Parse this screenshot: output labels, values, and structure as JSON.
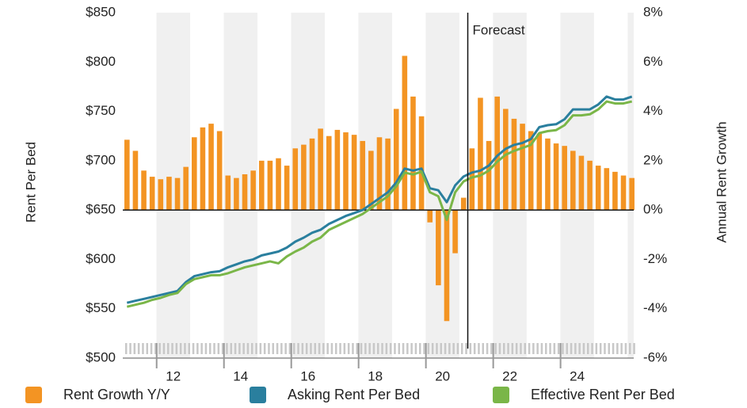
{
  "chart_data": {
    "type": "bar_line",
    "ylabel": "Rent Per Bed",
    "y2label": "Annual Rent Growth",
    "annotation": {
      "text": "Forecast",
      "x": 2021.25
    },
    "xlim": [
      2011,
      2026.18
    ],
    "xticks": [
      {
        "value": 2012.5,
        "label": "12"
      },
      {
        "value": 2014.5,
        "label": "14"
      },
      {
        "value": 2016.5,
        "label": "16"
      },
      {
        "value": 2018.5,
        "label": "18"
      },
      {
        "value": 2020.5,
        "label": "20"
      },
      {
        "value": 2022.5,
        "label": "22"
      },
      {
        "value": 2024.5,
        "label": "24"
      }
    ],
    "ylim": [
      500,
      850
    ],
    "yticks": [
      {
        "value": 500,
        "label": "$500"
      },
      {
        "value": 550,
        "label": "$550"
      },
      {
        "value": 600,
        "label": "$600"
      },
      {
        "value": 650,
        "label": "$650"
      },
      {
        "value": 700,
        "label": "$700"
      },
      {
        "value": 750,
        "label": "$750"
      },
      {
        "value": 800,
        "label": "$800"
      },
      {
        "value": 850,
        "label": "$850"
      }
    ],
    "y2lim": [
      -6,
      8
    ],
    "y2ticks": [
      {
        "value": -6,
        "label": "-6%"
      },
      {
        "value": -4,
        "label": "-4%"
      },
      {
        "value": -2,
        "label": "-2%"
      },
      {
        "value": 0,
        "label": "0%"
      },
      {
        "value": 2,
        "label": "2%"
      },
      {
        "value": 4,
        "label": "4%"
      },
      {
        "value": 6,
        "label": "6%"
      },
      {
        "value": 8,
        "label": "8%"
      }
    ],
    "x": [
      2011.125,
      2011.375,
      2011.625,
      2011.875,
      2012.125,
      2012.375,
      2012.625,
      2012.875,
      2013.125,
      2013.375,
      2013.625,
      2013.875,
      2014.125,
      2014.375,
      2014.625,
      2014.875,
      2015.125,
      2015.375,
      2015.625,
      2015.875,
      2016.125,
      2016.375,
      2016.625,
      2016.875,
      2017.125,
      2017.375,
      2017.625,
      2017.875,
      2018.125,
      2018.375,
      2018.625,
      2018.875,
      2019.125,
      2019.375,
      2019.625,
      2019.875,
      2020.125,
      2020.375,
      2020.625,
      2020.875,
      2021.125,
      2021.375,
      2021.625,
      2021.875,
      2022.125,
      2022.375,
      2022.625,
      2022.875,
      2023.125,
      2023.375,
      2023.625,
      2023.875,
      2024.125,
      2024.375,
      2024.625,
      2024.875,
      2025.125,
      2025.375,
      2025.625,
      2025.875,
      2026.125
    ],
    "series": [
      {
        "name": "Rent Growth Y/Y",
        "color": "#f39423",
        "kind": "bar",
        "axis": "y2",
        "values": [
          2.85,
          2.4,
          1.6,
          1.35,
          1.25,
          1.35,
          1.3,
          1.75,
          2.95,
          3.35,
          3.5,
          3.2,
          1.4,
          1.3,
          1.45,
          1.6,
          2.0,
          2.0,
          2.1,
          1.8,
          2.5,
          2.65,
          2.9,
          3.3,
          3.0,
          3.25,
          3.15,
          3.05,
          2.8,
          2.4,
          2.95,
          2.9,
          4.1,
          6.25,
          4.6,
          3.8,
          -0.5,
          -3.05,
          -4.5,
          -1.75,
          0.5,
          2.5,
          4.55,
          2.8,
          4.6,
          4.1,
          3.7,
          3.5,
          3.2,
          3.1,
          2.9,
          2.7,
          2.6,
          2.4,
          2.2,
          2.0,
          1.8,
          1.7,
          1.55,
          1.4,
          1.3
        ]
      },
      {
        "name": "Asking Rent Per Bed",
        "color": "#2a7f9e",
        "kind": "line",
        "values": [
          556,
          558,
          560,
          562,
          564,
          566,
          568,
          577,
          583,
          585,
          587,
          588,
          592,
          595,
          598,
          600,
          604,
          606,
          608,
          612,
          618,
          622,
          627,
          630,
          636,
          640,
          644,
          647,
          650,
          656,
          662,
          668,
          678,
          692,
          690,
          692,
          672,
          670,
          658,
          675,
          684,
          688,
          690,
          695,
          705,
          712,
          716,
          718,
          722,
          734,
          736,
          737,
          742,
          752,
          752,
          752,
          757,
          765,
          762,
          762,
          765
        ]
      },
      {
        "name": "Effective Rent Per Bed",
        "color": "#7ab648",
        "kind": "line",
        "values": [
          552,
          554,
          556,
          559,
          561,
          564,
          566,
          575,
          580,
          582,
          584,
          584,
          586,
          589,
          592,
          594,
          596,
          598,
          596,
          603,
          608,
          612,
          618,
          622,
          630,
          634,
          638,
          642,
          646,
          652,
          658,
          664,
          674,
          688,
          686,
          689,
          668,
          664,
          640,
          668,
          679,
          683,
          685,
          690,
          699,
          706,
          710,
          713,
          716,
          728,
          730,
          731,
          736,
          746,
          746,
          747,
          752,
          760,
          758,
          758,
          760
        ]
      }
    ]
  }
}
